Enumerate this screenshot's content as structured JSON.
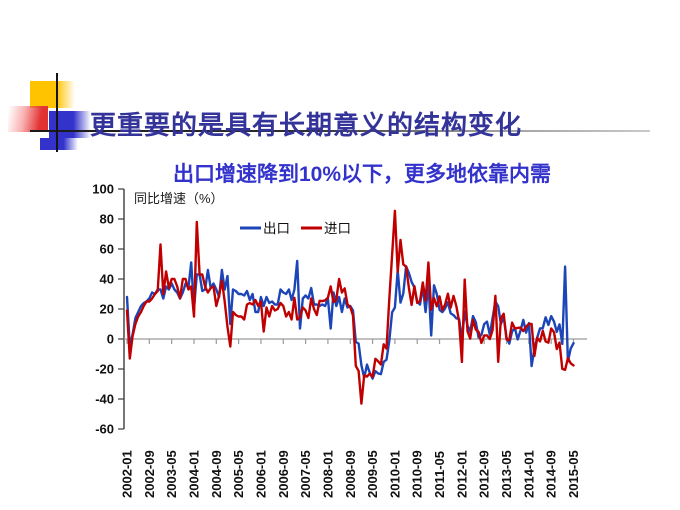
{
  "slide": {
    "title": "更重要的是具有长期意义的结构变化",
    "subtitle": "出口增速降到10%以下，更多地依靠内需",
    "title_color": "#333399",
    "subtitle_color": "#3333CC",
    "ornament_colors": {
      "yellow": "#FFC300",
      "red": "#E23333",
      "blue": "#3333CC",
      "line": "#141414"
    }
  },
  "chart_data": {
    "type": "line",
    "title": "",
    "axis_note": "同比增速（%）",
    "xlabel": "",
    "ylabel": "同比增速（%）",
    "x_unit": "month",
    "x_range": [
      "2002-01",
      "2015-05"
    ],
    "x_tick_labels": [
      "2002-01",
      "2002-09",
      "2003-05",
      "2004-01",
      "2004-09",
      "2005-05",
      "2006-01",
      "2006-09",
      "2007-05",
      "2008-01",
      "2008-09",
      "2009-05",
      "2010-01",
      "2010-09",
      "2011-05",
      "2012-01",
      "2012-09",
      "2013-05",
      "2014-01",
      "2014-09",
      "2015-05"
    ],
    "ylim": [
      -60,
      100
    ],
    "y_ticks": [
      100,
      80,
      60,
      40,
      20,
      0,
      -20,
      -40,
      -60
    ],
    "grid": false,
    "legend_position": "top-center",
    "series": [
      {
        "name": "出口",
        "color": "#1C45B8",
        "values": [
          28,
          -5,
          3,
          14,
          18,
          22,
          24,
          25,
          27,
          31,
          30,
          33,
          33,
          27,
          35,
          33,
          37,
          33,
          31,
          27,
          31,
          37,
          34,
          51,
          20,
          43,
          43,
          32,
          33,
          46,
          34,
          37,
          33,
          28,
          46,
          33,
          42,
          10,
          33,
          32,
          30,
          30,
          29,
          32,
          26,
          30,
          18,
          18,
          28,
          22,
          28,
          24,
          25,
          23,
          23,
          33,
          31,
          30,
          33,
          26,
          33,
          52,
          7,
          27,
          29,
          27,
          34,
          23,
          23,
          22,
          23,
          22,
          27,
          7,
          31,
          22,
          28,
          18,
          27,
          21,
          22,
          19,
          -2,
          -3,
          -17.5,
          -25.7,
          -17.1,
          -22.6,
          -26.4,
          -21.4,
          -23,
          -23.4,
          -15.2,
          -13.8,
          -1.2,
          17.7,
          21,
          45.7,
          24.3,
          30.5,
          48.5,
          43.9,
          38.1,
          34.4,
          25.1,
          22.9,
          34.9,
          17.9,
          37.7,
          2.4,
          35.8,
          29.9,
          19.4,
          17.9,
          20.4,
          24.5,
          17.1,
          15.9,
          13.8,
          13.4,
          -0.5,
          18.4,
          8.9,
          4.9,
          15.3,
          11.3,
          1.0,
          2.7,
          9.9,
          11.6,
          2.9,
          14.1,
          25,
          21.8,
          10,
          14.7,
          1,
          -3.1,
          5.1,
          7.2,
          -0.3,
          5.6,
          12.7,
          4.3,
          10.6,
          -18.1,
          -6.6,
          0.9,
          7,
          7.2,
          14.5,
          9.4,
          15.3,
          11.6,
          4.7,
          9.7,
          -3.3,
          48.3,
          -15,
          -6.4,
          -2.8
        ]
      },
      {
        "name": "进口",
        "color": "#C00000",
        "values": [
          19,
          -13,
          2,
          10,
          15,
          18,
          22,
          25,
          25,
          27,
          30,
          32,
          63,
          30,
          45,
          34,
          40,
          40,
          35,
          27,
          40,
          40,
          33,
          35,
          15,
          78,
          43,
          43,
          35,
          31,
          34,
          35,
          22,
          29,
          39,
          25,
          8,
          -5,
          18,
          16,
          15,
          15,
          13,
          23,
          24,
          23,
          26,
          22,
          25,
          5,
          21,
          15,
          22,
          19,
          20,
          24,
          22,
          15,
          18,
          13,
          27.5,
          13,
          14.5,
          21,
          19,
          14,
          27,
          20,
          16,
          25.5,
          25.3,
          25.7,
          27.6,
          35.1,
          24.6,
          26.3,
          40,
          31,
          33.7,
          23.1,
          21.3,
          15.6,
          -17.9,
          -21.3,
          -43.1,
          -24.1,
          -25.1,
          -23,
          -25.2,
          -13.2,
          -14.9,
          -17,
          -3.5,
          -6.4,
          26.7,
          55.9,
          85.5,
          44.7,
          66,
          49.7,
          48.3,
          34.1,
          22.7,
          35.2,
          24.1,
          25.3,
          37.7,
          25.6,
          51,
          19.4,
          27.3,
          21.8,
          28.4,
          19.3,
          22.9,
          30.2,
          20.9,
          28.7,
          22.1,
          11.8,
          -15.3,
          39.6,
          5.3,
          0.3,
          12.7,
          6.3,
          4.7,
          -2.6,
          2.4,
          2.4,
          0,
          6,
          28.8,
          -15.2,
          14.1,
          16.8,
          -0.3,
          -0.7,
          10.9,
          7,
          7.4,
          7.6,
          5.3,
          8.3,
          10,
          10.1,
          -11.3,
          0.8,
          -1.6,
          5.5,
          -1.6,
          -2.4,
          7,
          4.6,
          -6.7,
          -2.4,
          -19.9,
          -20.5,
          -12.7,
          -16.2,
          -17.6
        ]
      }
    ]
  }
}
